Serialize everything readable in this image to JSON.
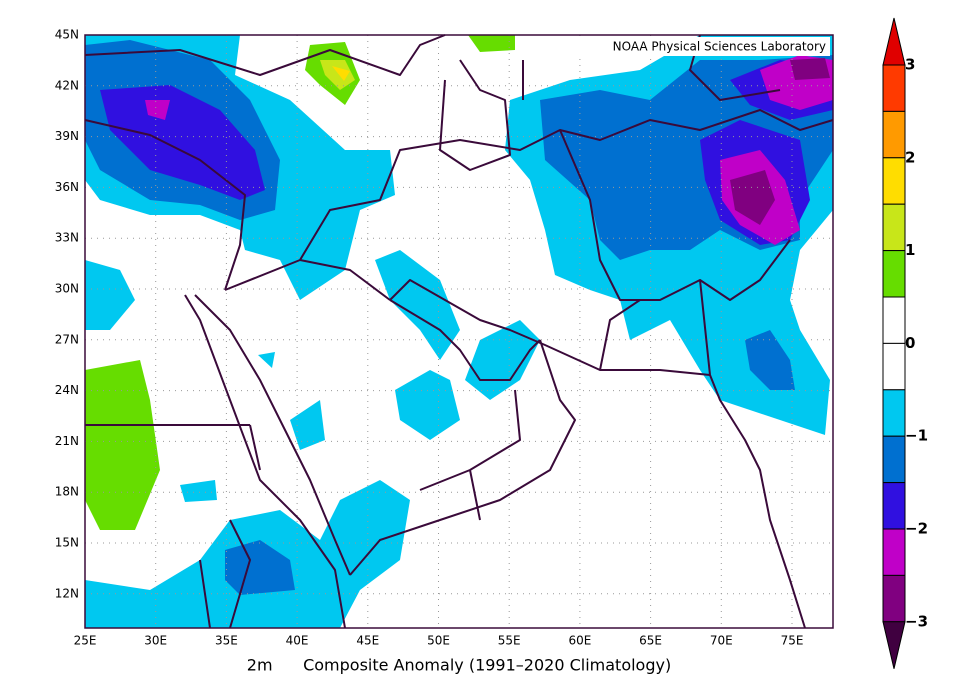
{
  "map": {
    "title": "2m      Composite Anomaly (1991–2020 Climatology)",
    "credit": "NOAA Physical Sciences Laboratory",
    "lon_labels": [
      "25E",
      "30E",
      "35E",
      "40E",
      "45E",
      "50E",
      "55E",
      "60E",
      "65E",
      "70E",
      "75E"
    ],
    "lat_labels": [
      "45N",
      "42N",
      "39N",
      "36N",
      "33N",
      "30N",
      "27N",
      "24N",
      "21N",
      "18N",
      "15N",
      "12N"
    ],
    "colorbar": {
      "labels": [
        "3",
        "2",
        "1",
        "0",
        "−1",
        "−2",
        "−3"
      ],
      "colors": [
        "#e00000",
        "#ff3a00",
        "#ff9a00",
        "#ffdd00",
        "#c8e619",
        "#66dd00",
        "#ffffff",
        "#ffffff",
        "#00c8f0",
        "#0070d0",
        "#3010e0",
        "#c000c8",
        "#800080",
        "#400040"
      ]
    }
  }
}
